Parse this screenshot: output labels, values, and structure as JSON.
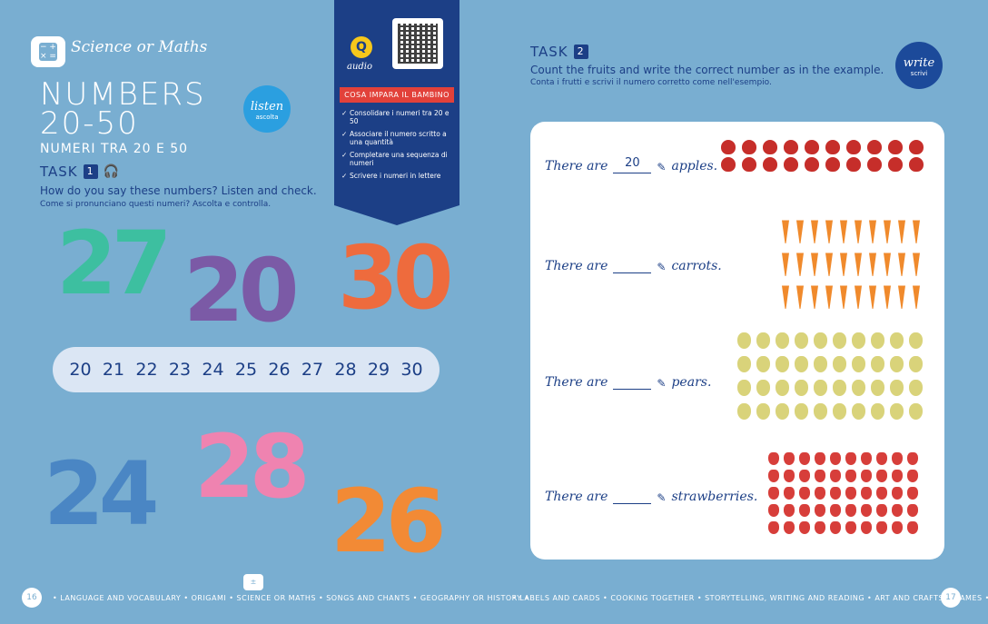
{
  "left": {
    "section_title": "Science or Maths",
    "title_line1": "NUMBERS",
    "title_line2": "20-50",
    "subtitle": "NUMERI TRA 20 E 50",
    "task_label": "TASK",
    "task_number": "1",
    "instruction_en": "How do you say these numbers? Listen and check.",
    "instruction_it": "Come si pronunciano questi numeri? Ascolta e controlla.",
    "listen_label": "listen",
    "listen_sub": "ascolta",
    "big_numbers": [
      {
        "value": "27",
        "color": "#3dbfa0"
      },
      {
        "value": "20",
        "color": "#7b5aa6"
      },
      {
        "value": "30",
        "color": "#ee6b3d"
      },
      {
        "value": "24",
        "color": "#4a86c4"
      },
      {
        "value": "28",
        "color": "#ef83b0"
      },
      {
        "value": "26",
        "color": "#f28a35"
      }
    ],
    "number_strip": [
      "20",
      "21",
      "22",
      "23",
      "24",
      "25",
      "26",
      "27",
      "28",
      "29",
      "30"
    ],
    "page_number": "16",
    "footer": "• LANGUAGE AND VOCABULARY • ORIGAMI • SCIENCE OR MATHS • SONGS AND CHANTS • GEOGRAPHY OR HISTORY •"
  },
  "banner": {
    "audio_label": "audio",
    "heading": "COSA IMPARA IL BAMBINO",
    "items": [
      "Consolidare i numeri tra 20 e 50",
      "Associare il numero scritto a una quantità",
      "Completare una sequenza di numeri",
      "Scrivere i numeri in lettere"
    ]
  },
  "right": {
    "task_label": "TASK",
    "task_number": "2",
    "instruction_en": "Count the fruits and write the correct number as in the example.",
    "instruction_it": "Conta i frutti e scrivi il numero corretto come nell'esempio.",
    "write_label": "write",
    "write_sub": "scrivi",
    "rows": [
      {
        "prefix": "There are",
        "answer": "20",
        "suffix": "apples.",
        "fruit": "apple",
        "count": 20,
        "cols": 10
      },
      {
        "prefix": "There are",
        "answer": "",
        "suffix": "carrots.",
        "fruit": "carrot",
        "count": 30,
        "cols": 10
      },
      {
        "prefix": "There are",
        "answer": "",
        "suffix": "pears.",
        "fruit": "pear",
        "count": 40,
        "cols": 10
      },
      {
        "prefix": "There are",
        "answer": "",
        "suffix": "strawberries.",
        "fruit": "straw",
        "count": 50,
        "cols": 10
      }
    ],
    "page_number": "17",
    "footer": "• LABELS AND CARDS • COOKING TOGETHER • STORYTELLING, WRITING AND READING • ART AND CRAFTS • GAMES •"
  }
}
